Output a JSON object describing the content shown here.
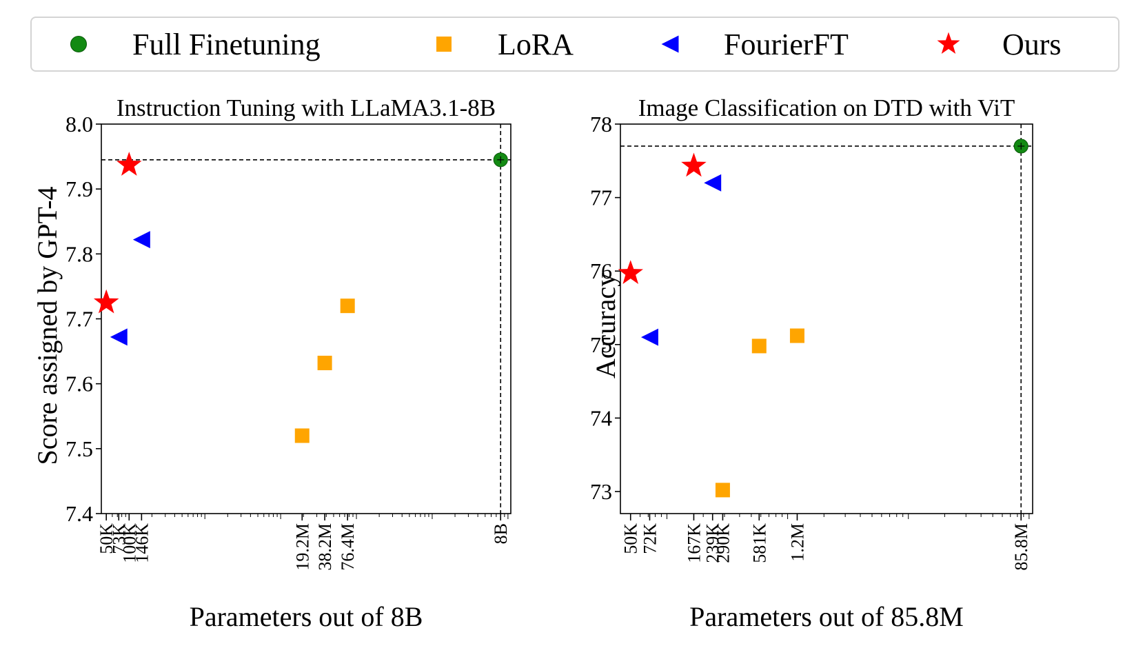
{
  "legend": [
    {
      "label": "Full Finetuning",
      "marker": "circle",
      "color": "#138a13"
    },
    {
      "label": "LoRA",
      "marker": "square",
      "color": "#ffa500"
    },
    {
      "label": "FourierFT",
      "marker": "triangle-left",
      "color": "#0000ff"
    },
    {
      "label": "Ours",
      "marker": "star",
      "color": "#ff0000"
    }
  ],
  "chart_data": [
    {
      "type": "scatter",
      "title": "Instruction Tuning with LLaMA3.1-8B",
      "xlabel": "Parameters out of 8B",
      "ylabel": "Score assigned by GPT-4",
      "x_scale": "log",
      "ylim": [
        7.4,
        8.0
      ],
      "yticks": [
        7.4,
        7.5,
        7.6,
        7.7,
        7.8,
        7.9,
        8.0
      ],
      "ytick_labels": [
        "7.4",
        "7.5",
        "7.6",
        "7.7",
        "7.8",
        "7.9",
        "8.0"
      ],
      "xticks": [
        50000,
        73000,
        100000,
        146000,
        19200000,
        38200000,
        76400000,
        8000000000
      ],
      "xtick_labels": [
        "50K",
        "73K",
        "100K",
        "146K",
        "19.2M",
        "38.2M",
        "76.4M",
        "8B"
      ],
      "reference_lines": {
        "x": 8000000000,
        "y": 7.945
      },
      "series": [
        {
          "name": "Full Finetuning",
          "points": [
            [
              8000000000,
              7.945
            ]
          ]
        },
        {
          "name": "LoRA",
          "points": [
            [
              19200000,
              7.52
            ],
            [
              38200000,
              7.632
            ],
            [
              76400000,
              7.72
            ]
          ]
        },
        {
          "name": "FourierFT",
          "points": [
            [
              73000,
              7.672
            ],
            [
              146000,
              7.822
            ]
          ]
        },
        {
          "name": "Ours",
          "points": [
            [
              50000,
              7.725
            ],
            [
              100000,
              7.937
            ]
          ]
        }
      ]
    },
    {
      "type": "scatter",
      "title": "Image Classification on DTD with ViT",
      "xlabel": "Parameters out of 85.8M",
      "ylabel": "Accuracy",
      "x_scale": "log",
      "ylim": [
        72.7,
        78.0
      ],
      "yticks": [
        73,
        74,
        75,
        76,
        77,
        78
      ],
      "ytick_labels": [
        "73",
        "74",
        "75",
        "76",
        "77",
        "78"
      ],
      "xticks": [
        50000,
        72000,
        167000,
        239000,
        290000,
        581000,
        1200000,
        85800000
      ],
      "xtick_labels": [
        "50K",
        "72K",
        "167K",
        "239K",
        "290K",
        "581K",
        "1.2M",
        "85.8M"
      ],
      "reference_lines": {
        "x": 85800000,
        "y": 77.7
      },
      "series": [
        {
          "name": "Full Finetuning",
          "points": [
            [
              85800000,
              77.7
            ]
          ]
        },
        {
          "name": "LoRA",
          "points": [
            [
              290000,
              73.02
            ],
            [
              581000,
              74.98
            ],
            [
              1200000,
              75.12
            ]
          ]
        },
        {
          "name": "FourierFT",
          "points": [
            [
              72000,
              75.1
            ],
            [
              239000,
              77.2
            ]
          ]
        },
        {
          "name": "Ours",
          "points": [
            [
              50000,
              75.97
            ],
            [
              167000,
              77.43
            ]
          ]
        }
      ]
    }
  ]
}
